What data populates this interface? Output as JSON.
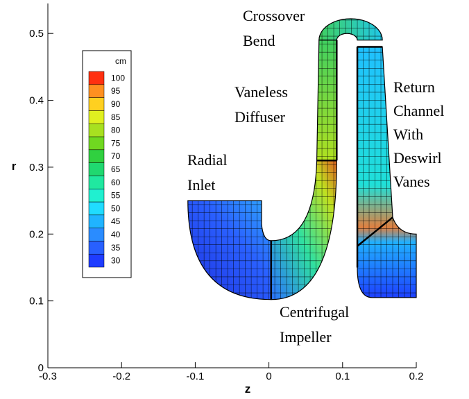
{
  "chart_data": {
    "type": "mesh",
    "xlabel": "z",
    "ylabel": "r",
    "xlim": [
      -0.3,
      0.2
    ],
    "ylim": [
      0,
      0.55
    ],
    "xticks": [
      -0.3,
      -0.2,
      -0.1,
      0,
      0.1,
      0.2
    ],
    "yticks": [
      0,
      0.1,
      0.2,
      0.3,
      0.4,
      0.5
    ],
    "annotations": [
      [
        "Crossover",
        "Bend"
      ],
      [
        "Vaneless",
        "Diffuser"
      ],
      [
        "Radial",
        "Inlet"
      ],
      [
        "Return",
        "Channel",
        "With",
        "Deswirl",
        "Vanes"
      ],
      [
        "Centrifugal",
        "Impeller"
      ]
    ],
    "colorbar": {
      "label": "cm",
      "levels": [
        30,
        35,
        40,
        45,
        50,
        55,
        60,
        65,
        70,
        75,
        80,
        85,
        90,
        95,
        100
      ],
      "colors": [
        "#1e3cff",
        "#2860ff",
        "#2a8cff",
        "#20b4ff",
        "#20dcff",
        "#20f0d0",
        "#20e8a0",
        "#20d870",
        "#30d040",
        "#70d820",
        "#a8e020",
        "#e0f020",
        "#ffd020",
        "#ff9020",
        "#ff3010"
      ]
    }
  }
}
